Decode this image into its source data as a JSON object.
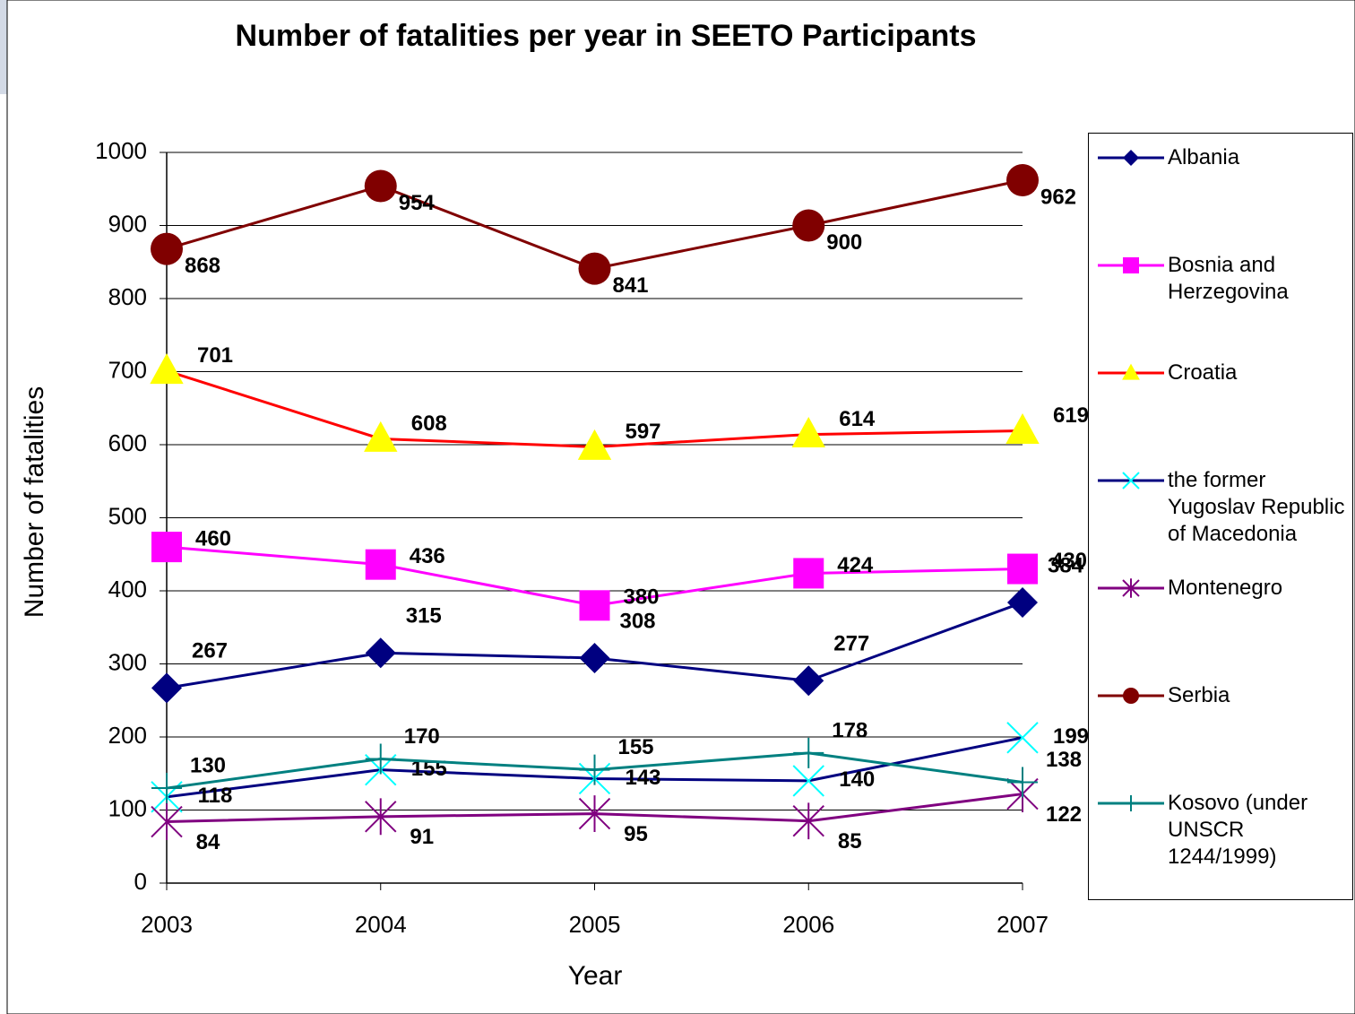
{
  "chart_data": {
    "type": "line",
    "title": "Number of fatalities per year in SEETO Participants",
    "x_label": "Year",
    "y_label": "Number of fatalities",
    "categories": [
      "2003",
      "2004",
      "2005",
      "2006",
      "2007"
    ],
    "ylim": [
      0,
      1000
    ],
    "yticks": [
      0,
      100,
      200,
      300,
      400,
      500,
      600,
      700,
      800,
      900,
      1000
    ],
    "grid": true,
    "legend": "right",
    "series": [
      {
        "name": "Albania",
        "color": "#000080",
        "marker": "diamond",
        "marker_color": "#000080",
        "values": [
          267,
          315,
          308,
          277,
          384
        ]
      },
      {
        "name": "Bosnia and Herzegovina",
        "color": "#ff00ff",
        "marker": "square",
        "marker_color": "#ff00ff",
        "values": [
          460,
          436,
          380,
          424,
          430
        ]
      },
      {
        "name": "Croatia",
        "color": "#ff0000",
        "marker": "triangle",
        "marker_color": "#ffff00",
        "values": [
          701,
          608,
          597,
          614,
          619
        ]
      },
      {
        "name": "the former Yugoslav Republic of Macedonia",
        "color": "#000080",
        "marker": "x",
        "marker_color": "#00ffff",
        "values": [
          118,
          155,
          143,
          140,
          199
        ]
      },
      {
        "name": "Montenegro",
        "color": "#800080",
        "marker": "star",
        "marker_color": "#800080",
        "values": [
          84,
          91,
          95,
          85,
          122
        ]
      },
      {
        "name": "Serbia",
        "color": "#800000",
        "marker": "circle",
        "marker_color": "#800000",
        "values": [
          868,
          954,
          841,
          900,
          962
        ]
      },
      {
        "name": "Kosovo (under UNSCR 1244/1999)",
        "color": "#008080",
        "marker": "plus",
        "marker_color": "#008080",
        "values": [
          130,
          170,
          155,
          178,
          138
        ]
      }
    ]
  }
}
